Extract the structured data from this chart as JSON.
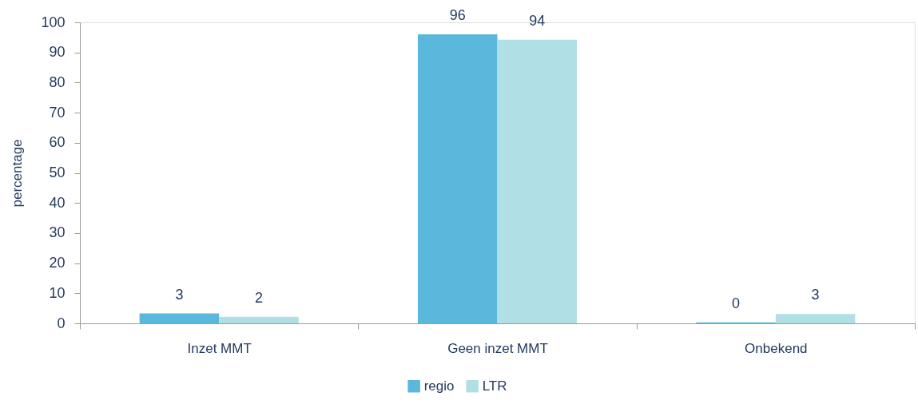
{
  "chart_data": {
    "type": "bar",
    "categories": [
      "Inzet MMT",
      "Geen inzet MMT",
      "Onbekend"
    ],
    "series": [
      {
        "name": "regio",
        "color": "#5bb8dd",
        "values": [
          3.3,
          96.0,
          0.3
        ],
        "value_labels": [
          "3",
          "96",
          "0"
        ]
      },
      {
        "name": "LTR",
        "color": "#b0dfe5",
        "values": [
          2.2,
          94.2,
          3.1
        ],
        "value_labels": [
          "2",
          "94",
          "3"
        ]
      }
    ],
    "ylabel": "percentage",
    "ylim": [
      0,
      100
    ],
    "yticks": [
      0,
      10,
      20,
      30,
      40,
      50,
      60,
      70,
      80,
      90,
      100
    ],
    "grid": false,
    "legend": "bottom"
  }
}
